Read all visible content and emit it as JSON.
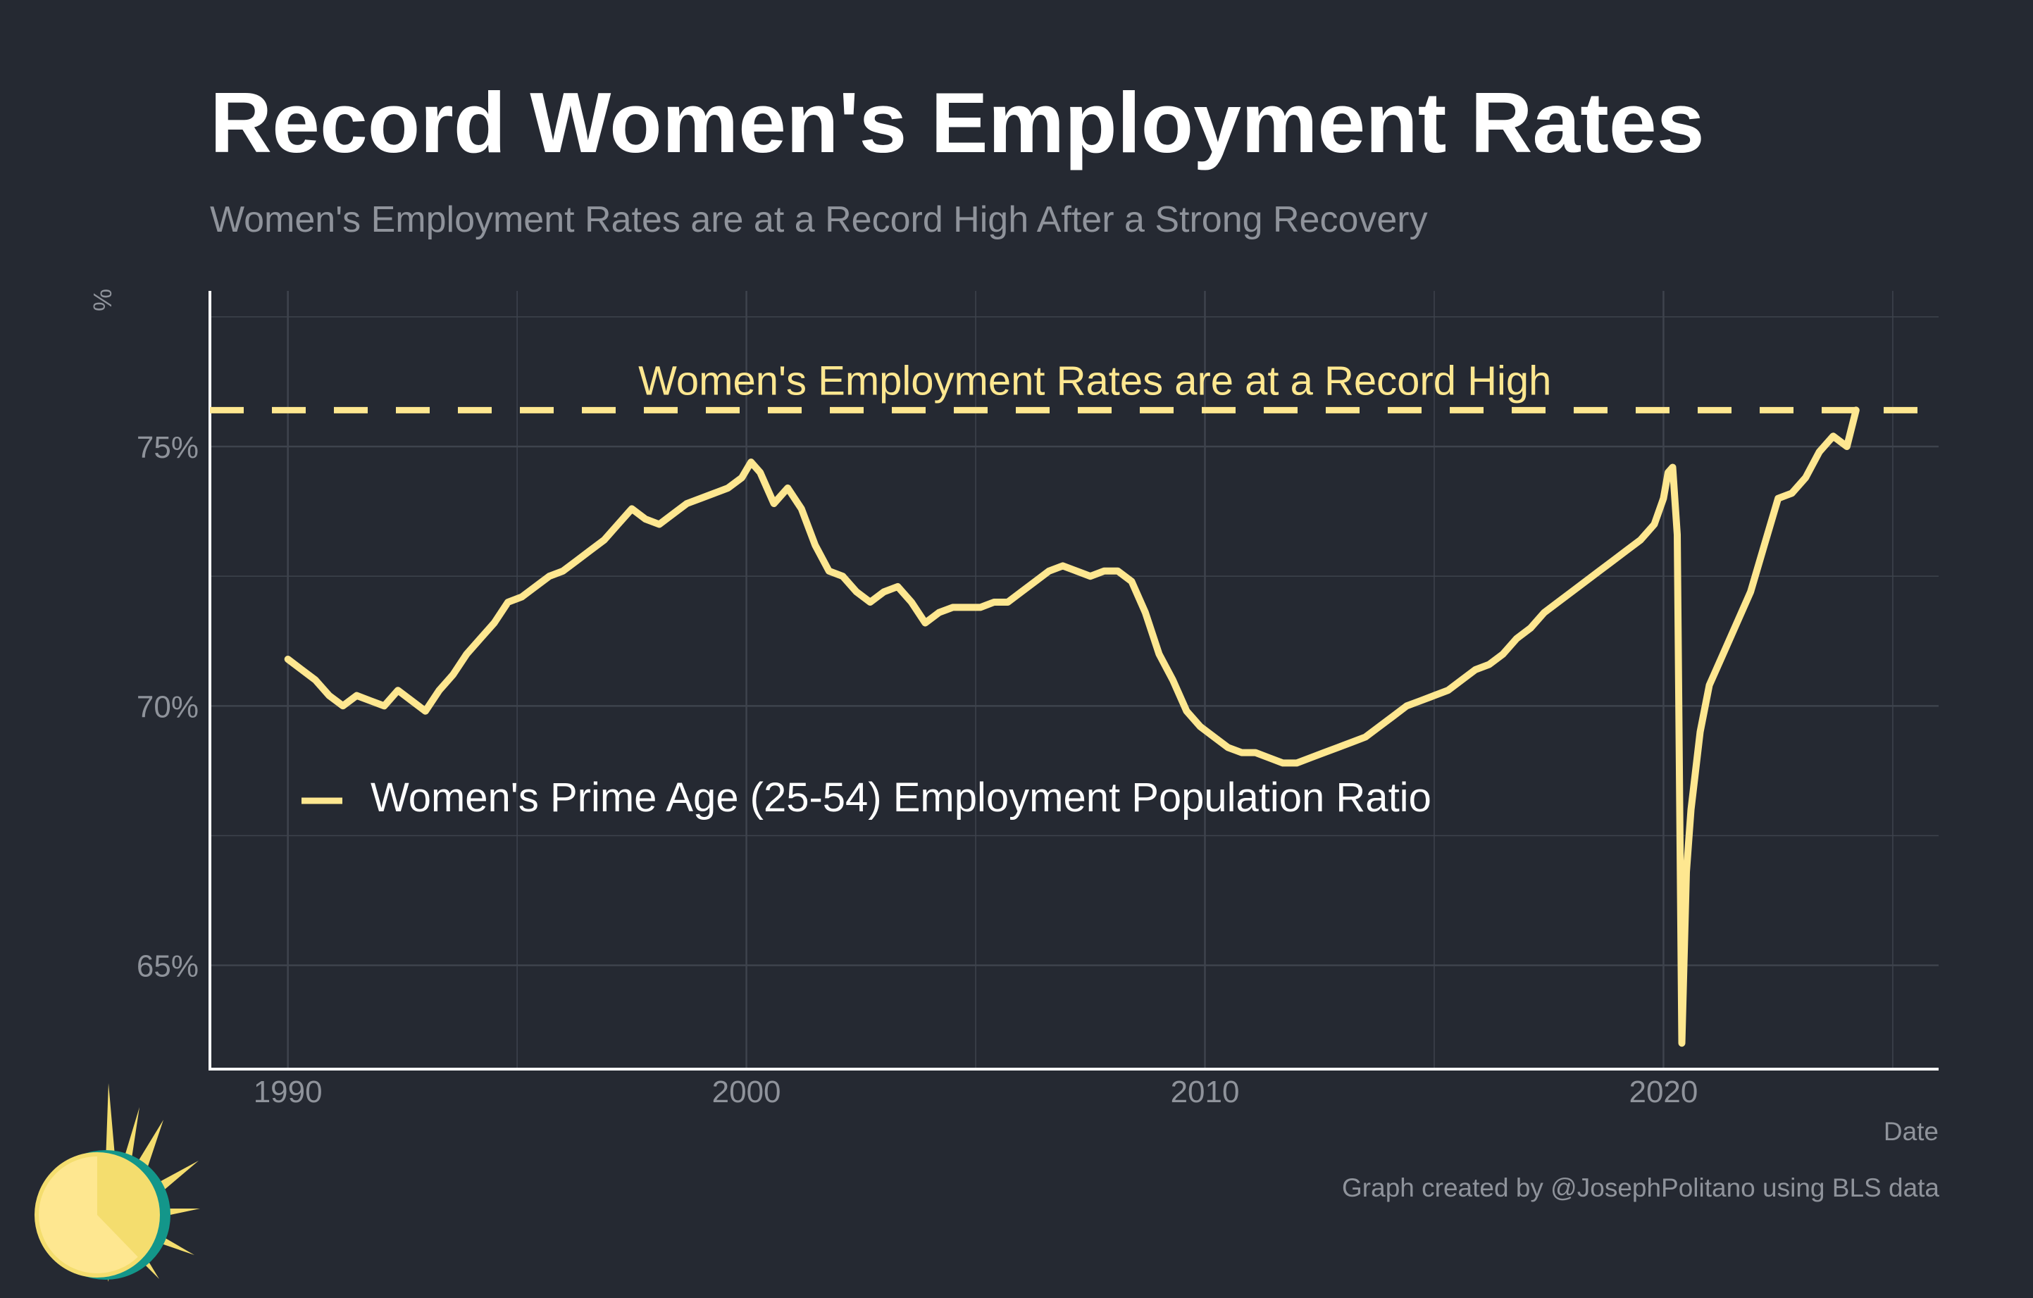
{
  "title": "Record Women's Employment Rates",
  "subtitle": "Women's Employment Rates are at a Record High After a Strong Recovery",
  "credit": "Graph created by @JosephPolitano using BLS data",
  "colors": {
    "background": "#252932",
    "line": "#fee790",
    "text_muted": "#8f939b",
    "grid": "#3e434d",
    "logo_teal": "#13968a",
    "logo_yellow": "#f4dd6e"
  },
  "chart_data": {
    "type": "line",
    "title": "Record Women's Employment Rates",
    "subtitle": "Women's Employment Rates are at a Record High After a Strong Recovery",
    "xlabel": "Date",
    "ylabel": "%",
    "xlim": [
      1988.3,
      2026.0
    ],
    "ylim": [
      63.0,
      78.0
    ],
    "x_ticks": [
      1990,
      2000,
      2010,
      2020
    ],
    "x_tick_labels": [
      "1990",
      "2000",
      "2010",
      "2020"
    ],
    "y_ticks": [
      65,
      70,
      75
    ],
    "y_tick_labels": [
      "65%",
      "70%",
      "75%"
    ],
    "grid": true,
    "legend": {
      "position": "left, inside plot",
      "entry": "Women's Prime Age (25-54) Employment Population Ratio"
    },
    "reference_line": {
      "y": 75.7,
      "style": "dashed",
      "label": "Women's Employment Rates are at a Record High"
    },
    "series": [
      {
        "name": "Women's Prime Age (25-54) Employment Population Ratio",
        "x": [
          1990.0,
          1990.3,
          1990.6,
          1990.9,
          1991.2,
          1991.5,
          1991.8,
          1992.1,
          1992.4,
          1992.7,
          1993.0,
          1993.3,
          1993.6,
          1993.9,
          1994.2,
          1994.5,
          1994.8,
          1995.1,
          1995.4,
          1995.7,
          1996.0,
          1996.3,
          1996.6,
          1996.9,
          1997.2,
          1997.5,
          1997.8,
          1998.1,
          1998.4,
          1998.7,
          1999.0,
          1999.3,
          1999.6,
          1999.9,
          2000.1,
          2000.3,
          2000.6,
          2000.9,
          2001.2,
          2001.5,
          2001.8,
          2002.1,
          2002.4,
          2002.7,
          2003.0,
          2003.3,
          2003.6,
          2003.9,
          2004.2,
          2004.5,
          2004.8,
          2005.1,
          2005.4,
          2005.7,
          2006.0,
          2006.3,
          2006.6,
          2006.9,
          2007.2,
          2007.5,
          2007.8,
          2008.1,
          2008.4,
          2008.7,
          2009.0,
          2009.3,
          2009.6,
          2009.9,
          2010.2,
          2010.5,
          2010.8,
          2011.1,
          2011.4,
          2011.7,
          2012.0,
          2012.3,
          2012.6,
          2012.9,
          2013.2,
          2013.5,
          2013.8,
          2014.1,
          2014.4,
          2014.7,
          2015.0,
          2015.3,
          2015.6,
          2015.9,
          2016.2,
          2016.5,
          2016.8,
          2017.1,
          2017.4,
          2017.7,
          2018.0,
          2018.3,
          2018.6,
          2018.9,
          2019.2,
          2019.5,
          2019.8,
          2020.0,
          2020.1,
          2020.2,
          2020.3,
          2020.4,
          2020.5,
          2020.6,
          2020.8,
          2021.0,
          2021.3,
          2021.6,
          2021.9,
          2022.2,
          2022.5,
          2022.8,
          2023.1,
          2023.4,
          2023.7,
          2024.0,
          2024.2
        ],
        "y": [
          70.9,
          70.7,
          70.5,
          70.2,
          70.0,
          70.2,
          70.1,
          70.0,
          70.3,
          70.1,
          69.9,
          70.3,
          70.6,
          71.0,
          71.3,
          71.6,
          72.0,
          72.1,
          72.3,
          72.5,
          72.6,
          72.8,
          73.0,
          73.2,
          73.5,
          73.8,
          73.6,
          73.5,
          73.7,
          73.9,
          74.0,
          74.1,
          74.2,
          74.4,
          74.7,
          74.5,
          73.9,
          74.2,
          73.8,
          73.1,
          72.6,
          72.5,
          72.2,
          72.0,
          72.2,
          72.3,
          72.0,
          71.6,
          71.8,
          71.9,
          71.9,
          71.9,
          72.0,
          72.0,
          72.2,
          72.4,
          72.6,
          72.7,
          72.6,
          72.5,
          72.6,
          72.6,
          72.4,
          71.8,
          71.0,
          70.5,
          69.9,
          69.6,
          69.4,
          69.2,
          69.1,
          69.1,
          69.0,
          68.9,
          68.9,
          69.0,
          69.1,
          69.2,
          69.3,
          69.4,
          69.6,
          69.8,
          70.0,
          70.1,
          70.2,
          70.3,
          70.5,
          70.7,
          70.8,
          71.0,
          71.3,
          71.5,
          71.8,
          72.0,
          72.2,
          72.4,
          72.6,
          72.8,
          73.0,
          73.2,
          73.5,
          74.0,
          74.5,
          74.6,
          73.3,
          63.5,
          66.8,
          68.0,
          69.5,
          70.4,
          71.0,
          71.6,
          72.2,
          73.1,
          74.0,
          74.1,
          74.4,
          74.9,
          75.2,
          75.0,
          75.7
        ]
      }
    ]
  }
}
